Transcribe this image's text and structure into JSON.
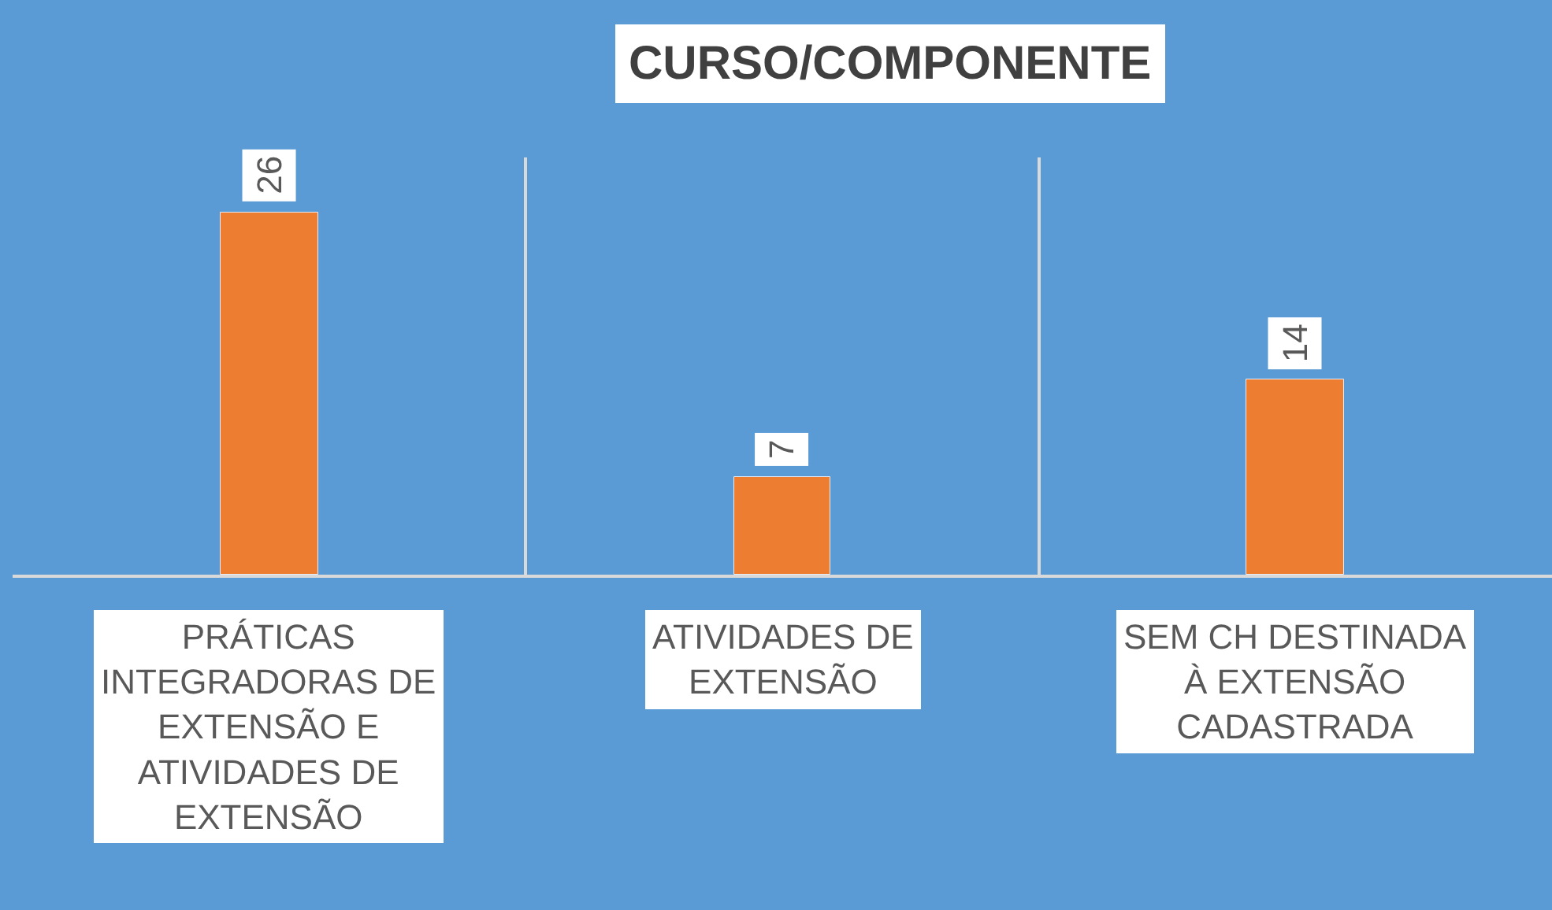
{
  "chart_data": {
    "type": "bar",
    "title": "CURSO/COMPONENTE",
    "categories": [
      "PRÁTICAS INTEGRADORAS DE EXTENSÃO E ATIVIDADES DE EXTENSÃO",
      "ATIVIDADES DE EXTENSÃO",
      "SEM CH DESTINADA À EXTENSÃO CADASTRADA"
    ],
    "values": [
      26,
      7,
      14
    ],
    "color": "#ed7d31",
    "data_labels": true,
    "grid": "x"
  }
}
